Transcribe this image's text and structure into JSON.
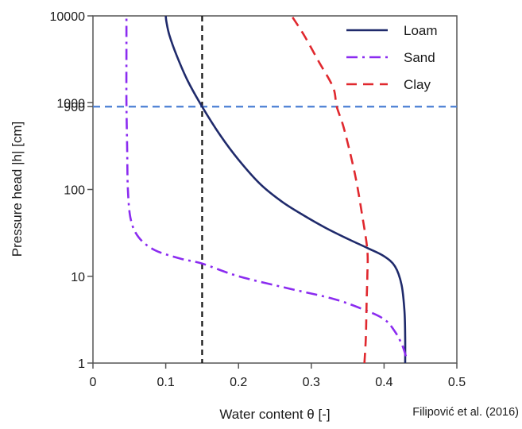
{
  "chart_data": {
    "type": "line",
    "xlabel": "Water content θ [-]",
    "ylabel": "Pressure head |h| [cm]",
    "source_note": "Filipović et al. (2016)",
    "xlim": [
      0,
      0.5
    ],
    "ylim": [
      1,
      10000
    ],
    "y_scale": "log",
    "grid": false,
    "legend_position": "top-right",
    "x_ticks": [
      0,
      0.1,
      0.2,
      0.3,
      0.4,
      0.5
    ],
    "x_tick_labels": [
      "0",
      "0.1",
      "0.2",
      "0.3",
      "0.4",
      "0.5"
    ],
    "y_ticks": [
      1,
      10,
      100,
      900,
      1000,
      10000
    ],
    "y_tick_labels": [
      "1",
      "10",
      "100",
      "900",
      "1000",
      "10000"
    ],
    "reference_lines": [
      {
        "orientation": "horizontal",
        "value": 900,
        "color": "#4a7fd4",
        "style": "dashed"
      },
      {
        "orientation": "vertical",
        "value": 0.15,
        "color": "#111111",
        "style": "dashed"
      }
    ],
    "series": [
      {
        "name": "Loam",
        "color": "#1f2a6b",
        "style": "solid",
        "points": [
          [
            0.429,
            1
          ],
          [
            0.429,
            2
          ],
          [
            0.428,
            4
          ],
          [
            0.424,
            8
          ],
          [
            0.415,
            13
          ],
          [
            0.4,
            17
          ],
          [
            0.378,
            21
          ],
          [
            0.35,
            27
          ],
          [
            0.32,
            36
          ],
          [
            0.29,
            50
          ],
          [
            0.26,
            72
          ],
          [
            0.23,
            115
          ],
          [
            0.2,
            220
          ],
          [
            0.175,
            420
          ],
          [
            0.15,
            900
          ],
          [
            0.13,
            1800
          ],
          [
            0.115,
            3500
          ],
          [
            0.105,
            6000
          ],
          [
            0.101,
            8500
          ],
          [
            0.1,
            10000
          ]
        ]
      },
      {
        "name": "Sand",
        "color": "#8b2cf0",
        "style": "dashdot",
        "points": [
          [
            0.43,
            1.2
          ],
          [
            0.425,
            1.6
          ],
          [
            0.415,
            2.3
          ],
          [
            0.4,
            3.2
          ],
          [
            0.37,
            4.2
          ],
          [
            0.33,
            5.5
          ],
          [
            0.27,
            7.2
          ],
          [
            0.2,
            10
          ],
          [
            0.15,
            14
          ],
          [
            0.12,
            16
          ],
          [
            0.085,
            20
          ],
          [
            0.063,
            28
          ],
          [
            0.052,
            45
          ],
          [
            0.048,
            100
          ],
          [
            0.047,
            300
          ],
          [
            0.046,
            1000
          ],
          [
            0.046,
            4000
          ],
          [
            0.046,
            10000
          ]
        ]
      },
      {
        "name": "Clay",
        "color": "#e0282e",
        "style": "dashed",
        "points": [
          [
            0.373,
            1
          ],
          [
            0.375,
            2
          ],
          [
            0.376,
            5
          ],
          [
            0.377,
            10
          ],
          [
            0.377,
            20
          ],
          [
            0.37,
            50
          ],
          [
            0.36,
            150
          ],
          [
            0.345,
            500
          ],
          [
            0.335,
            900
          ],
          [
            0.33,
            1500
          ],
          [
            0.31,
            3000
          ],
          [
            0.29,
            6000
          ],
          [
            0.273,
            10000
          ]
        ]
      }
    ]
  }
}
